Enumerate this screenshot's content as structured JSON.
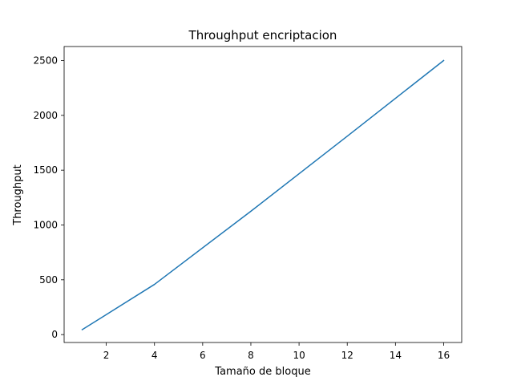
{
  "chart_data": {
    "type": "line",
    "title": "Throughput encriptacion",
    "xlabel": "Tamaño de bloque",
    "ylabel": "Throughput",
    "xlim": [
      0.25,
      16.75
    ],
    "ylim": [
      -72,
      2628
    ],
    "x_ticks": [
      2,
      4,
      6,
      8,
      10,
      12,
      14,
      16
    ],
    "y_ticks": [
      0,
      500,
      1000,
      1500,
      2000,
      2500
    ],
    "grid": false,
    "legend": "none",
    "series": [
      {
        "color": "#1f77b4",
        "x": [
          1,
          4,
          8,
          12,
          16
        ],
        "y": [
          45,
          458,
          1125,
          1810,
          2500
        ]
      }
    ]
  }
}
